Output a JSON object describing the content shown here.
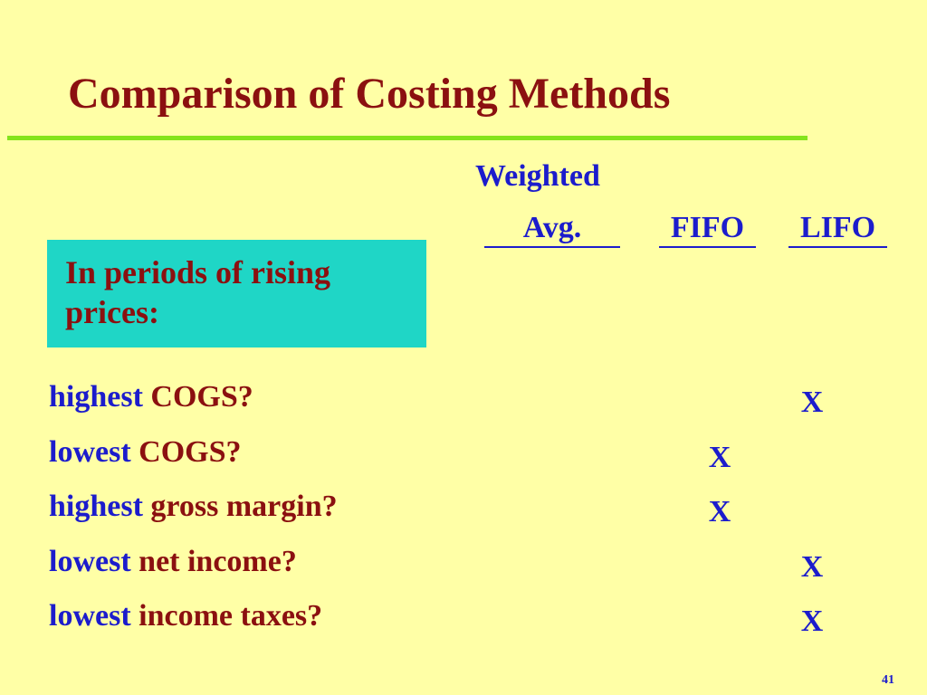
{
  "title": "Comparison of Costing Methods",
  "columns": [
    {
      "line1": "Weighted",
      "line2": "Avg."
    },
    "FIFO",
    "LIFO"
  ],
  "callout": "In periods of rising prices:",
  "rows": [
    {
      "qualifier": "highest",
      "item": "COGS?",
      "cells": [
        null,
        null,
        "X"
      ]
    },
    {
      "qualifier": "lowest",
      "item": "COGS?",
      "cells": [
        null,
        "X",
        null
      ]
    },
    {
      "qualifier": "highest",
      "item": "gross margin?",
      "cells": [
        null,
        "X",
        null
      ]
    },
    {
      "qualifier": "lowest",
      "item": "net income?",
      "cells": [
        null,
        null,
        "X"
      ]
    },
    {
      "qualifier": "lowest",
      "item": "income taxes?",
      "cells": [
        null,
        null,
        "X"
      ]
    }
  ],
  "page_number": "41"
}
